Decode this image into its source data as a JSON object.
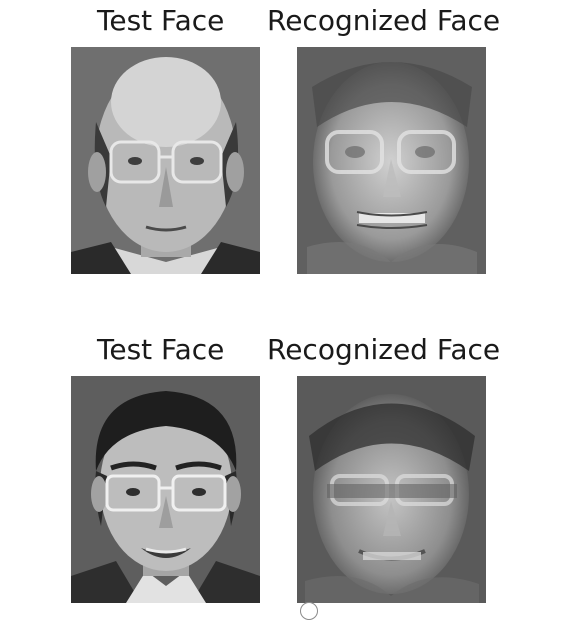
{
  "rows": [
    {
      "test_title": "Test Face",
      "recognized_title": "Recognized Face"
    },
    {
      "test_title": "Test Face",
      "recognized_title": "Recognized Face"
    }
  ],
  "image_style": "grayscale"
}
